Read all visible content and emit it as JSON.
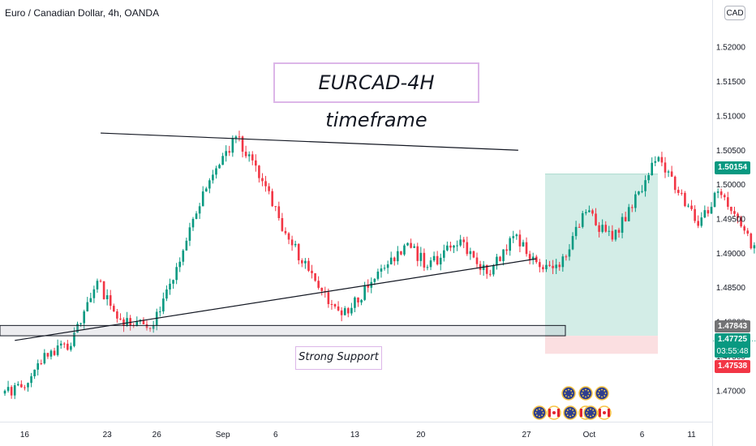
{
  "header": {
    "symbol_line": "Euro / Canadian Dollar, 4h, OANDA",
    "currency_button": "CAD"
  },
  "chart_data": {
    "type": "candlestick",
    "title": "EURCAD-4H timeframe",
    "annotation": "Strong Support",
    "y_ticks": [
      "1.52000",
      "1.51500",
      "1.51000",
      "1.50500",
      "1.50000",
      "1.49500",
      "1.49000",
      "1.48500",
      "1.48000",
      "1.47500",
      "1.47000"
    ],
    "x_ticks": [
      "16",
      "23",
      "26",
      "Sep",
      "6",
      "13",
      "20",
      "27",
      "Oct",
      "6",
      "11"
    ],
    "ylim": [
      1.4655,
      1.5245
    ],
    "grid": false,
    "price_labels": {
      "target": "1.50154",
      "support_top": "1.47843",
      "last_price": "1.47725",
      "countdown": "03:55:48",
      "stop": "1.47538"
    },
    "price_values": {
      "target": 1.50154,
      "support_top": 1.47843,
      "last_price": 1.47725,
      "stop": 1.47538
    },
    "trendlines": [
      {
        "name": "resistance",
        "from": {
          "date": "Aug 22",
          "price": 1.5075
        },
        "to": {
          "date": "Sep 28",
          "price": 1.505
        }
      },
      {
        "name": "rising-support",
        "from": {
          "date": "Aug 17",
          "price": 1.4785
        },
        "to": {
          "date": "Sep 28",
          "price": 1.4892
        }
      }
    ],
    "support_zone": {
      "top": 1.4795,
      "bottom": 1.478
    },
    "position": {
      "entry": 1.478,
      "target": 1.50154,
      "stop": 1.47538
    },
    "candle_waypoints": [
      [
        1.47,
        8
      ],
      [
        1.4705,
        6
      ],
      [
        1.4755,
        6
      ],
      [
        1.4765,
        8
      ],
      [
        1.486,
        8
      ],
      [
        1.4805,
        6
      ],
      [
        1.479,
        10
      ],
      [
        1.488,
        8
      ],
      [
        1.499,
        8
      ],
      [
        1.507,
        10
      ],
      [
        1.5005,
        8
      ],
      [
        1.492,
        8
      ],
      [
        1.486,
        8
      ],
      [
        1.481,
        8
      ],
      [
        1.485,
        8
      ],
      [
        1.4915,
        12
      ],
      [
        1.488,
        6
      ],
      [
        1.492,
        10
      ],
      [
        1.487,
        8
      ],
      [
        1.4925,
        8
      ],
      [
        1.488,
        8
      ],
      [
        1.488,
        6
      ],
      [
        1.496,
        8
      ],
      [
        1.492,
        8
      ],
      [
        1.499,
        8
      ],
      [
        1.504,
        6
      ],
      [
        1.494,
        12
      ],
      [
        1.499,
        6
      ],
      [
        1.49,
        12
      ],
      [
        1.498,
        10
      ],
      [
        1.497,
        8
      ],
      [
        1.495,
        8
      ],
      [
        1.4895,
        8
      ],
      [
        1.499,
        12
      ],
      [
        1.501,
        8
      ],
      [
        1.5045,
        8
      ],
      [
        1.497,
        8
      ],
      [
        1.5045,
        8
      ],
      [
        1.501,
        6
      ],
      [
        1.495,
        8
      ],
      [
        1.488,
        6
      ],
      [
        1.484,
        8
      ],
      [
        1.487,
        6
      ],
      [
        1.4895,
        6
      ],
      [
        1.479,
        10
      ],
      [
        1.4777,
        4
      ]
    ]
  }
}
